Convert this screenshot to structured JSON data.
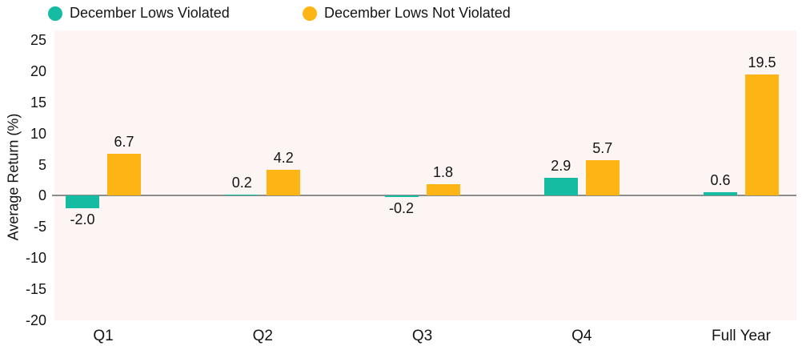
{
  "legend": {
    "items": [
      {
        "label": "December Lows Violated",
        "color": "#16bca2"
      },
      {
        "label": "December Lows Not Violated",
        "color": "#fdb515"
      }
    ]
  },
  "chart_data": {
    "type": "bar",
    "categories": [
      "Q1",
      "Q2",
      "Q3",
      "Q4",
      "Full Year"
    ],
    "series": [
      {
        "name": "December Lows Violated",
        "color": "#16bca2",
        "values": [
          -2.0,
          0.2,
          -0.2,
          2.9,
          0.6
        ]
      },
      {
        "name": "December Lows Not Violated",
        "color": "#fdb515",
        "values": [
          6.7,
          4.2,
          1.8,
          5.7,
          19.5
        ]
      }
    ],
    "value_labels": [
      "-2.0",
      "0.2",
      "-0.2",
      "2.9",
      "0.6",
      "6.7",
      "4.2",
      "1.8",
      "5.7",
      "19.5"
    ],
    "title": "",
    "xlabel": "",
    "ylabel": "Average Return (%)",
    "ylim": [
      -20,
      25
    ],
    "yticks": [
      25,
      20,
      15,
      10,
      5,
      0,
      -5,
      -10,
      -15,
      -20
    ],
    "grid": false,
    "legend_position": "top",
    "plot_background": "#fdf5f3",
    "zero_line_color": "#8d8d8d",
    "text_color": "#141414"
  }
}
